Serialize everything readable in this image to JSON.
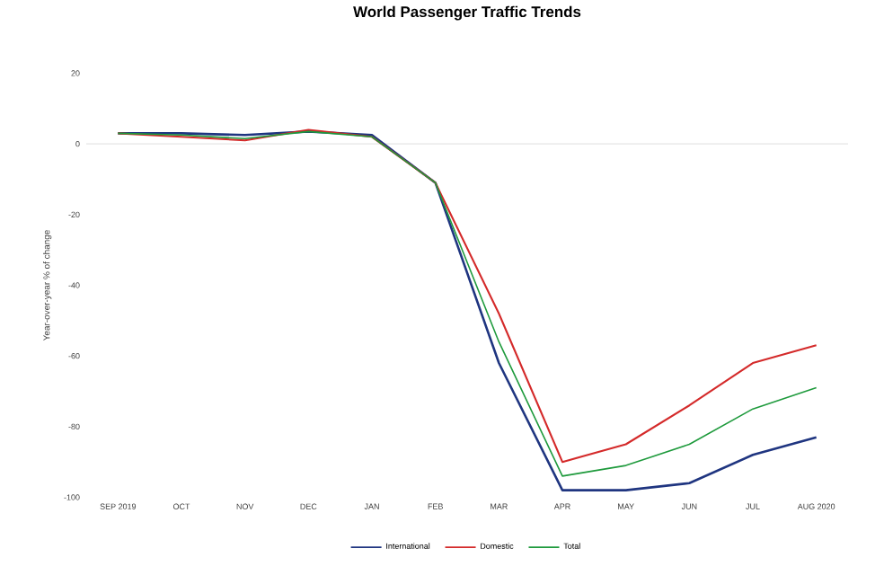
{
  "chart_data": {
    "type": "line",
    "title": "World Passenger Traffic Trends",
    "ylabel": "Year-over-year % of change",
    "categories": [
      "SEP 2019",
      "OCT",
      "NOV",
      "DEC",
      "JAN",
      "FEB",
      "MAR",
      "APR",
      "MAY",
      "JUN",
      "JUL",
      "AUG 2020"
    ],
    "series": [
      {
        "name": "International",
        "color": "#1f3580",
        "values": [
          3,
          3,
          2.5,
          3.5,
          2.5,
          -11,
          -62,
          -98,
          -98,
          -96,
          -88,
          -83
        ]
      },
      {
        "name": "Domestic",
        "color": "#d42a2a",
        "values": [
          3,
          2,
          1,
          4,
          2,
          -11,
          -48,
          -90,
          -85,
          -74,
          -62,
          -57
        ]
      },
      {
        "name": "Total",
        "color": "#1e9a3c",
        "values": [
          3,
          2.5,
          1.5,
          3.5,
          2,
          -11,
          -56,
          -94,
          -91,
          -85,
          -75,
          -69
        ]
      }
    ],
    "ylim": [
      -100,
      20
    ],
    "yticks": [
      -100,
      -80,
      -60,
      -40,
      -20,
      0,
      20
    ],
    "ref_lines": [
      {
        "axis": "y",
        "value": 0,
        "color": "#e4e4e4"
      }
    ],
    "grid": false,
    "legend": "bottom",
    "marker": "none",
    "line_style": "solid"
  }
}
